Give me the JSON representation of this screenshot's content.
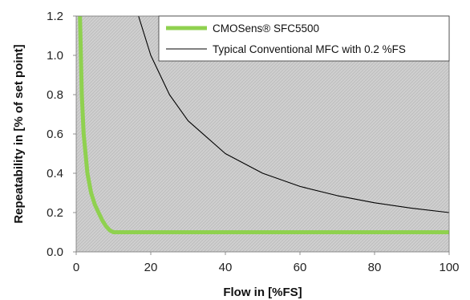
{
  "chart_data": {
    "type": "line",
    "title": "",
    "xlabel": "Flow in [%FS]",
    "ylabel": "Repeatability in [% of set point]",
    "xlim": [
      0,
      100
    ],
    "ylim": [
      0,
      1.2
    ],
    "x_ticks": [
      0,
      20,
      40,
      60,
      80,
      100
    ],
    "y_ticks": [
      "0.0",
      "0.2",
      "0.4",
      "0.6",
      "0.8",
      "1.0",
      "1.2"
    ],
    "background": "crosshatch grey",
    "grid": false,
    "legend_position": "top-right",
    "series": [
      {
        "name": "CMOSens® SFC5500",
        "color": "#8fd14f",
        "x": [
          1,
          1.5,
          2,
          3,
          4,
          5,
          6,
          7,
          8,
          9,
          10,
          20,
          40,
          60,
          80,
          100
        ],
        "y": [
          1.2,
          0.8,
          0.6,
          0.4,
          0.3,
          0.24,
          0.2,
          0.16,
          0.13,
          0.11,
          0.1,
          0.1,
          0.1,
          0.1,
          0.1,
          0.1
        ]
      },
      {
        "name": "Typical Conventional MFC with 0.2 %FS",
        "color": "#000000",
        "x": [
          16.7,
          20,
          25,
          30,
          40,
          50,
          60,
          70,
          80,
          90,
          100
        ],
        "y": [
          1.2,
          1.0,
          0.8,
          0.667,
          0.5,
          0.4,
          0.333,
          0.286,
          0.25,
          0.222,
          0.2
        ]
      }
    ]
  }
}
